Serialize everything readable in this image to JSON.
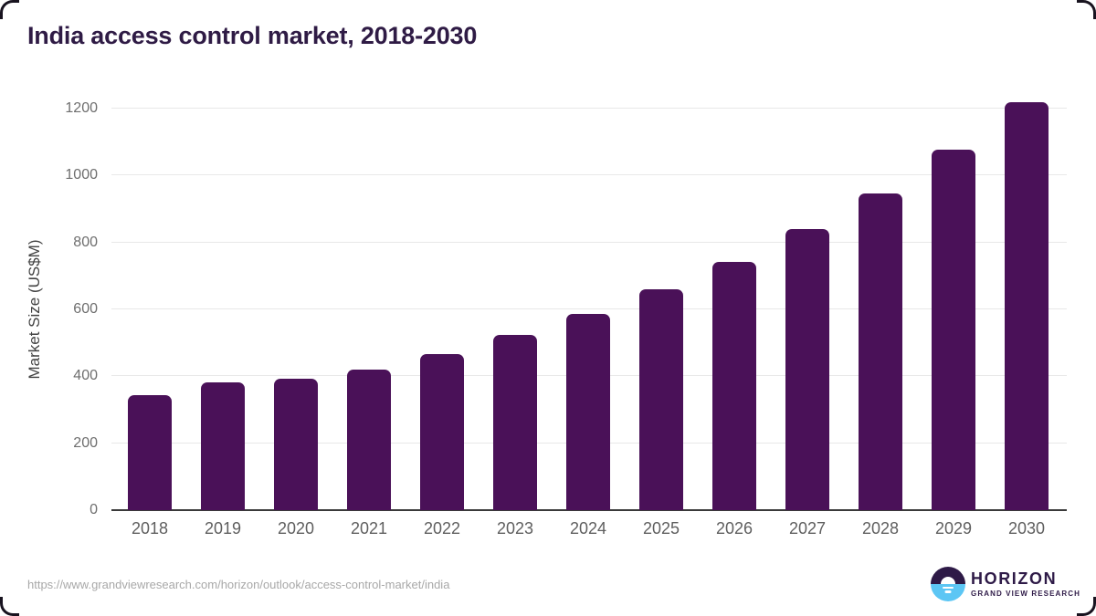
{
  "card": {
    "title": "India access control market, 2018-2030",
    "source_url": "https://www.grandviewresearch.com/horizon/outlook/access-control-market/india"
  },
  "chart_data": {
    "type": "bar",
    "title": "India access control market, 2018-2030",
    "categories": [
      "2018",
      "2019",
      "2020",
      "2021",
      "2022",
      "2023",
      "2024",
      "2025",
      "2026",
      "2027",
      "2028",
      "2029",
      "2030"
    ],
    "values": [
      345,
      381,
      392,
      421,
      466,
      523,
      586,
      660,
      741,
      839,
      946,
      1076,
      1220
    ],
    "xlabel": "",
    "ylabel": "Market Size (US$M)",
    "ylim": [
      0,
      1200
    ],
    "yticks": [
      0,
      200,
      400,
      600,
      800,
      1000,
      1200
    ],
    "grid": "horizontal",
    "legend": "none",
    "bar_color": "#4a1158"
  },
  "logo": {
    "name": "HORIZON",
    "subtitle": "GRAND VIEW RESEARCH",
    "icon": "sunset-circle-icon",
    "colors": {
      "dark": "#2e1a47",
      "light_blue": "#5cc6f4"
    }
  },
  "colors": {
    "title_text": "#2f1b45",
    "bar": "#4a1158",
    "axis_line": "#3a3a3a",
    "gridline": "#e8e8e8",
    "y_tick_label": "#6e6e6e",
    "x_tick_label": "#5f5f5f",
    "url_text": "#a8a8a8"
  }
}
